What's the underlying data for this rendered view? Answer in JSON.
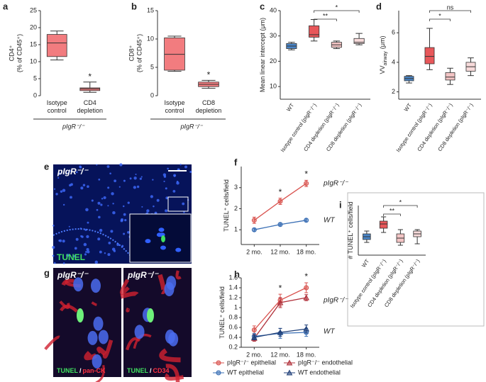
{
  "chart_data": [
    {
      "panel": "a",
      "type": "box",
      "ylabel": [
        "CD4⁺",
        "(% of CD45⁺)"
      ],
      "xlabel": "pIgR⁻/⁻",
      "categories": [
        "Isotype control",
        "CD4 depletion"
      ],
      "colors": [
        "#f27c7f",
        "#f27c7f"
      ],
      "boxes": [
        {
          "min": 10.5,
          "q1": 11.5,
          "median": 15.5,
          "q3": 18,
          "max": 19
        },
        {
          "min": 1,
          "q1": 1.5,
          "median": 2,
          "q3": 2.3,
          "max": 4
        }
      ],
      "ylim": [
        0,
        25
      ],
      "yticks": [
        0,
        5,
        10,
        15,
        20,
        25
      ],
      "annotations": [
        {
          "label": "*",
          "category": "CD4 depletion"
        }
      ]
    },
    {
      "panel": "b",
      "type": "box",
      "ylabel": [
        "CD8⁺",
        "(% of CD45⁺)"
      ],
      "xlabel": "pIgR⁻/⁻",
      "categories": [
        "Isotype control",
        "CD8 depletion"
      ],
      "colors": [
        "#f27c7f",
        "#f27c7f"
      ],
      "boxes": [
        {
          "min": 4.3,
          "q1": 4.5,
          "median": 7.3,
          "q3": 10.2,
          "max": 10.5
        },
        {
          "min": 1.3,
          "q1": 1.6,
          "median": 2,
          "q3": 2.4,
          "max": 2.7
        }
      ],
      "ylim": [
        0,
        15
      ],
      "yticks": [
        0,
        5,
        10,
        15
      ],
      "annotations": [
        {
          "label": "*",
          "category": "CD8 depletion"
        }
      ]
    },
    {
      "panel": "c",
      "type": "box",
      "ylabel": "Mean linear intercept (μm)",
      "categories": [
        "WT",
        "Isotype control (pIgR⁻/⁻)",
        "CD4 depletion (pIgR⁻/⁻)",
        "CD8 depletion (pIgR⁻/⁻)"
      ],
      "colors": [
        "#4a86c8",
        "#e8575a",
        "#f3c4c4",
        "#f7dada"
      ],
      "boxes": [
        {
          "min": 24.5,
          "q1": 25,
          "median": 26,
          "q3": 27,
          "max": 27.5
        },
        {
          "min": 28,
          "q1": 29.5,
          "median": 30.5,
          "q3": 34,
          "max": 36.5
        },
        {
          "min": 25,
          "q1": 25.5,
          "median": 26.5,
          "q3": 27.5,
          "max": 28
        },
        {
          "min": 26.5,
          "q1": 27,
          "median": 27.5,
          "q3": 29,
          "max": 31
        }
      ],
      "ylim": [
        5,
        40
      ],
      "yticks": [
        10,
        20,
        30,
        40
      ],
      "brackets": [
        {
          "label": "**",
          "between": [
            "Isotype control (pIgR⁻/⁻)",
            "CD4 depletion (pIgR⁻/⁻)"
          ]
        },
        {
          "label": "*",
          "between": [
            "Isotype control (pIgR⁻/⁻)",
            "CD8 depletion (pIgR⁻/⁻)"
          ]
        }
      ]
    },
    {
      "panel": "d",
      "type": "box",
      "ylabel": "VV",
      "ylabel_sub": "airway",
      "ylabel_unit": "(μm)",
      "categories": [
        "WT",
        "Isotype control (pIgR⁻/⁻)",
        "CD4 depletion (pIgR⁻/⁻)",
        "CD8 depletion (pIgR⁻/⁻)"
      ],
      "colors": [
        "#4a86c8",
        "#e8575a",
        "#f3c4c4",
        "#f7dada"
      ],
      "boxes": [
        {
          "min": 2.6,
          "q1": 2.75,
          "median": 2.9,
          "q3": 3.05,
          "max": 3.1
        },
        {
          "min": 3.5,
          "q1": 3.9,
          "median": 4.4,
          "q3": 5.0,
          "max": 6.3
        },
        {
          "min": 2.5,
          "q1": 2.8,
          "median": 3.0,
          "q3": 3.3,
          "max": 3.6
        },
        {
          "min": 3.1,
          "q1": 3.4,
          "median": 3.7,
          "q3": 4.0,
          "max": 4.3
        }
      ],
      "ylim": [
        1.5,
        7.5
      ],
      "yticks": [
        2,
        4,
        6
      ],
      "brackets": [
        {
          "label": "*",
          "between": [
            "Isotype control (pIgR⁻/⁻)",
            "CD4 depletion (pIgR⁻/⁻)"
          ]
        },
        {
          "label": "ns",
          "between": [
            "Isotype control (pIgR⁻/⁻)",
            "CD8 depletion (pIgR⁻/⁻)"
          ]
        }
      ]
    },
    {
      "panel": "f",
      "type": "line",
      "ylabel": "TUNEL⁺ cells/field",
      "categories": [
        "2 mo.",
        "12 mo.",
        "18 mo."
      ],
      "series": [
        {
          "name": "pIgR⁻/⁻",
          "color": "#d9534f",
          "marker": "circle",
          "values": [
            1.45,
            2.35,
            3.2
          ],
          "errors": [
            0.15,
            0.15,
            0.15
          ]
        },
        {
          "name": "WT",
          "color": "#3a6fb5",
          "marker": "circle",
          "values": [
            1.0,
            1.25,
            1.45
          ],
          "errors": [
            0.07,
            0.07,
            0.07
          ]
        }
      ],
      "ylim": [
        0.3,
        4
      ],
      "yticks": [
        1,
        2,
        3
      ],
      "annotations": [
        {
          "label": "*",
          "category": "12 mo."
        },
        {
          "label": "*",
          "category": "18 mo."
        }
      ]
    },
    {
      "panel": "h",
      "type": "line",
      "ylabel": "TUNEL⁺ cells/field",
      "categories": [
        "2 mo.",
        "12 mo.",
        "18 mo."
      ],
      "series": [
        {
          "name": "pIgR⁻/⁻ epithelial",
          "color": "#d9534f",
          "marker": "circle",
          "values": [
            0.55,
            1.15,
            1.4
          ],
          "errors": [
            0.08,
            0.12,
            0.1
          ]
        },
        {
          "name": "pIgR⁻/⁻ endothelial",
          "color": "#b0303a",
          "marker": "triangle",
          "values": [
            0.38,
            1.1,
            1.2
          ],
          "errors": [
            0.06,
            0.1,
            0.06
          ]
        },
        {
          "name": "WT epithelial",
          "color": "#3a6fb5",
          "marker": "circle",
          "values": [
            0.42,
            0.48,
            0.5
          ],
          "errors": [
            0.06,
            0.1,
            0.08
          ]
        },
        {
          "name": "WT endothelial",
          "color": "#1f3f78",
          "marker": "triangle",
          "values": [
            0.4,
            0.5,
            0.57
          ],
          "errors": [
            0.05,
            0.08,
            0.08
          ]
        }
      ],
      "line_labels": [
        "pIgR⁻/⁻",
        "WT"
      ],
      "ylim": [
        0.2,
        1.6
      ],
      "yticks": [
        0.2,
        0.4,
        0.6,
        0.8,
        1.0,
        1.2,
        1.4,
        1.6
      ],
      "annotations": [
        {
          "label": "*",
          "category": "12 mo."
        },
        {
          "label": "*",
          "category": "18 mo."
        }
      ]
    },
    {
      "panel": "i",
      "type": "box",
      "ylabel": "# TUNEL⁺ cells/field",
      "categories": [
        "WT",
        "Isotype control (pIgR⁻/⁻)",
        "CD4 depletion (pIgR⁻/⁻)",
        "CD8 depletion (pIgR⁻/⁻)"
      ],
      "colors": [
        "#4a86c8",
        "#e8575a",
        "#f3c4c4",
        "#f7dada"
      ],
      "boxes": [
        {
          "min": 0.9,
          "q1": 1.1,
          "median": 1.3,
          "q3": 1.5,
          "max": 1.7
        },
        {
          "min": 1.6,
          "q1": 1.9,
          "median": 2.2,
          "q3": 2.4,
          "max": 2.7
        },
        {
          "min": 0.7,
          "q1": 0.9,
          "median": 1.2,
          "q3": 1.5,
          "max": 1.8
        },
        {
          "min": 0.8,
          "q1": 1.3,
          "median": 1.5,
          "q3": 1.7,
          "max": 1.8
        }
      ],
      "ylim": [
        0,
        3.5
      ],
      "brackets": [
        {
          "label": "**",
          "between": [
            "Isotype control (pIgR⁻/⁻)",
            "CD4 depletion (pIgR⁻/⁻)"
          ]
        },
        {
          "label": "*",
          "between": [
            "Isotype control (pIgR⁻/⁻)",
            "CD8 depletion (pIgR⁻/⁻)"
          ]
        }
      ]
    }
  ],
  "micrographs": [
    {
      "panel": "e",
      "images": [
        {
          "title": "pIgR⁻/⁻",
          "stain": [
            "TUNEL"
          ]
        }
      ]
    },
    {
      "panel": "g",
      "images": [
        {
          "title": "pIgR⁻/⁻",
          "stain": [
            "TUNEL",
            "/",
            "pan-CK"
          ]
        },
        {
          "title": "pIgR⁻/⁻",
          "stain": [
            "TUNEL",
            "/",
            "CD34"
          ]
        }
      ]
    }
  ]
}
